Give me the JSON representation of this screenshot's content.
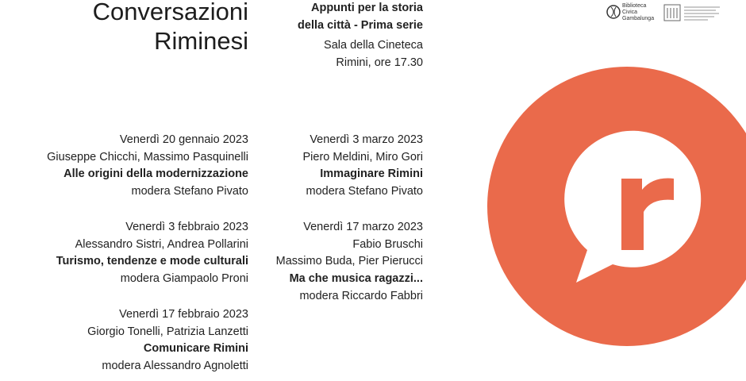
{
  "header": {
    "title": [
      "Conversazioni",
      "Riminesi"
    ],
    "subtitle": [
      "Appunti per la storia",
      "della città - Prima serie"
    ],
    "venue": [
      "Sala della Cineteca",
      "Rimini, ore 17.30"
    ]
  },
  "logo": {
    "library": [
      "Biblioteca",
      "Civica",
      "Gambalunga"
    ]
  },
  "events": [
    {
      "date": "Venerdì 20 gennaio 2023",
      "speakers": [
        "Giuseppe Chicchi, Massimo Pasquinelli"
      ],
      "title": "Alle origini della modernizzazione",
      "moderator": "modera Stefano Pivato"
    },
    {
      "date": "Venerdì 3 febbraio 2023",
      "speakers": [
        "Alessandro Sistri, Andrea Pollarini"
      ],
      "title": "Turismo, tendenze e mode culturali",
      "moderator": "modera Giampaolo Proni"
    },
    {
      "date": "Venerdì 17 febbraio 2023",
      "speakers": [
        "Giorgio Tonelli, Patrizia Lanzetti"
      ],
      "title": "Comunicare Rimini",
      "moderator": "modera Alessandro Agnoletti"
    },
    {
      "date": "Venerdì 3 marzo 2023",
      "speakers": [
        "Piero Meldini, Miro Gori"
      ],
      "title": "Immaginare Rimini",
      "moderator": "modera Stefano Pivato"
    },
    {
      "date": "Venerdì 17 marzo 2023",
      "speakers": [
        "Fabio Bruschi",
        "Massimo Buda, Pier Pierucci"
      ],
      "title": "Ma che musica ragazzi...",
      "moderator": "modera Riccardo Fabbri"
    }
  ]
}
